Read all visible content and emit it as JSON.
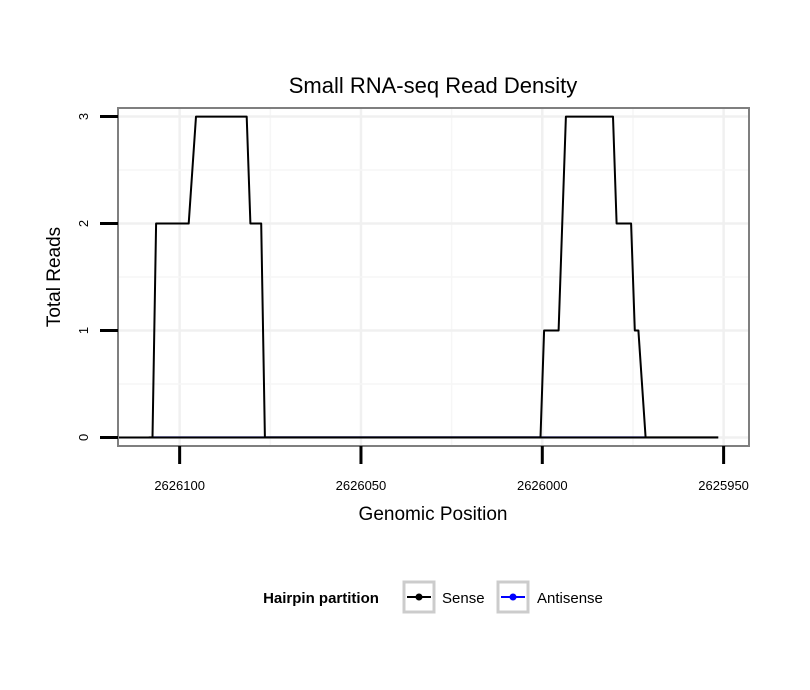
{
  "chart_data": {
    "type": "line",
    "title": "Small RNA-seq Read Density",
    "xlabel": "Genomic Position",
    "ylabel": "Total Reads",
    "x_reversed": true,
    "xlim": [
      2626117,
      2625943
    ],
    "ylim": [
      -0.08,
      3.08
    ],
    "x_ticks": [
      2626100,
      2626050,
      2626000,
      2625950
    ],
    "x_tick_labels": [
      "2626100",
      "2626050",
      "2626000",
      "2625950"
    ],
    "y_ticks": [
      0,
      1,
      2,
      3
    ],
    "y_tick_labels": [
      "0",
      "1",
      "2",
      "3"
    ],
    "grid": true,
    "legend": {
      "title": "Hairpin partition",
      "position": "bottom",
      "entries": [
        {
          "label": "Sense",
          "color": "#000000"
        },
        {
          "label": "Antisense",
          "color": "#0000ff"
        }
      ]
    },
    "series": [
      {
        "name": "Sense",
        "color": "#000000",
        "points": [
          [
            2626108.5,
            0
          ],
          [
            2626107.5,
            0
          ],
          [
            2626106.5,
            2
          ],
          [
            2626097.5,
            2
          ],
          [
            2626095.5,
            3
          ],
          [
            2626081.5,
            3
          ],
          [
            2626080.5,
            2
          ],
          [
            2626077.5,
            2
          ],
          [
            2626076.5,
            0
          ],
          [
            2626000.5,
            0
          ],
          [
            2625999.5,
            1
          ],
          [
            2625995.5,
            1
          ],
          [
            2625993.5,
            3
          ],
          [
            2625980.5,
            3
          ],
          [
            2625979.5,
            2
          ],
          [
            2625975.5,
            2
          ],
          [
            2625974.5,
            1
          ],
          [
            2625973.5,
            1
          ],
          [
            2625971.5,
            0
          ],
          [
            2625951.5,
            0
          ]
        ]
      },
      {
        "name": "Antisense",
        "color": "#0000ff",
        "points": [
          [
            2626107.5,
            0
          ],
          [
            2626076.5,
            0
          ],
          [
            2626000.5,
            0
          ],
          [
            2625971.5,
            0
          ]
        ]
      }
    ]
  }
}
